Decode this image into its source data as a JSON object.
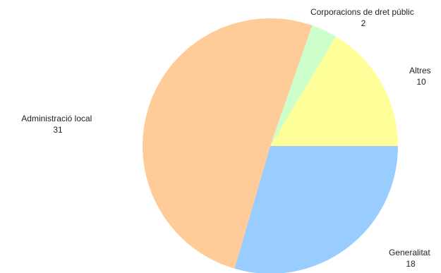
{
  "chart_data": {
    "type": "pie",
    "title": "",
    "start_angle_deg": 0,
    "direction": "clockwise",
    "legend": "none",
    "slices": [
      {
        "label": "Generalitat",
        "value": 18,
        "color": "#99ccff"
      },
      {
        "label": "Administració local",
        "value": 31,
        "color": "#ffcc99"
      },
      {
        "label": "Corporacions de dret públic",
        "value": 2,
        "color": "#ccffcc"
      },
      {
        "label": "Altres",
        "value": 10,
        "color": "#ffff99"
      }
    ]
  }
}
